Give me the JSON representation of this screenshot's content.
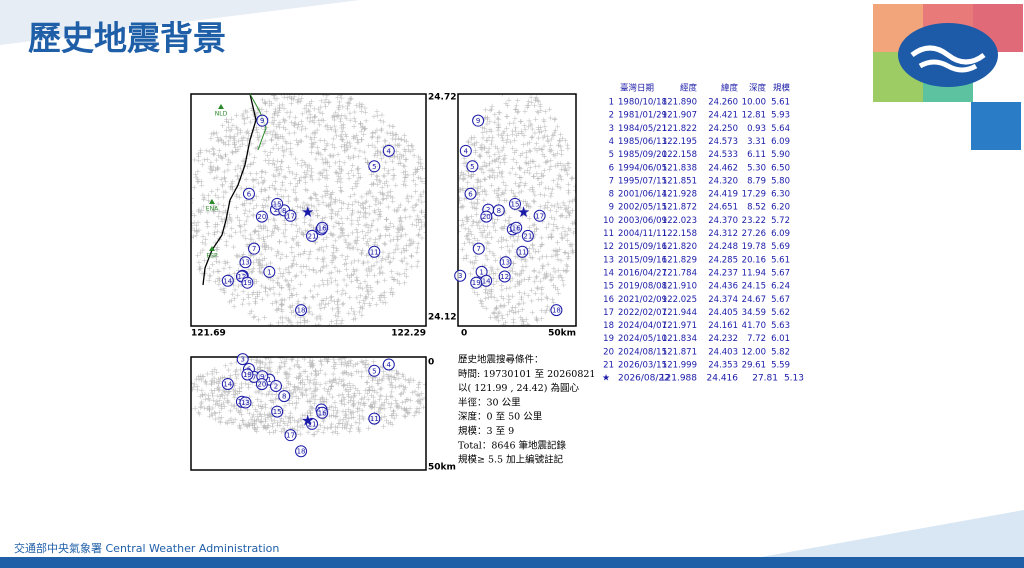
{
  "header": {
    "title": "歷史地震背景"
  },
  "map": {
    "lat_top": "24.72",
    "lat_bottom": "24.12",
    "lon_left": "121.69",
    "lon_right": "122.29",
    "depth_top": "0",
    "depth_bottom": "50km",
    "stations": [
      "NLD",
      "ENA",
      "ESP"
    ]
  },
  "conditions": [
    "歷史地震搜尋條件：",
    "時間: 19730101 至 20260821",
    "以( 121.99 , 24.42) 為圓心",
    "半徑：30 公里",
    "深度：0 至 50 公里",
    "規模：3 至 9",
    "Total：8646 筆地震記錄",
    "規模≥ 5.5 加上編號註記"
  ],
  "table": {
    "header": [
      "臺灣日期",
      "經度",
      "緯度",
      "深度",
      "規模"
    ],
    "rows": [
      [
        "1",
        "1980/10/18",
        "121.890",
        "24.260",
        "10.00",
        "5.61"
      ],
      [
        "2",
        "1981/01/29",
        "121.907",
        "24.421",
        "12.81",
        "5.93"
      ],
      [
        "3",
        "1984/05/21",
        "121.822",
        "24.250",
        "0.93",
        "5.64"
      ],
      [
        "4",
        "1985/06/13",
        "122.195",
        "24.573",
        "3.31",
        "6.09"
      ],
      [
        "5",
        "1985/09/20",
        "122.158",
        "24.533",
        "6.11",
        "5.90"
      ],
      [
        "6",
        "1994/06/05",
        "121.838",
        "24.462",
        "5.30",
        "6.50"
      ],
      [
        "7",
        "1995/07/15",
        "121.851",
        "24.320",
        "8.79",
        "5.80"
      ],
      [
        "8",
        "2001/06/14",
        "121.928",
        "24.419",
        "17.29",
        "6.30"
      ],
      [
        "9",
        "2002/05/15",
        "121.872",
        "24.651",
        "8.52",
        "6.20"
      ],
      [
        "10",
        "2003/06/09",
        "122.023",
        "24.370",
        "23.22",
        "5.72"
      ],
      [
        "11",
        "2004/11/11",
        "122.158",
        "24.312",
        "27.26",
        "6.09"
      ],
      [
        "12",
        "2015/09/16",
        "121.820",
        "24.248",
        "19.78",
        "5.69"
      ],
      [
        "13",
        "2015/09/16",
        "121.829",
        "24.285",
        "20.16",
        "5.61"
      ],
      [
        "14",
        "2016/04/27",
        "121.784",
        "24.237",
        "11.94",
        "5.67"
      ],
      [
        "15",
        "2019/08/08",
        "121.910",
        "24.436",
        "24.15",
        "6.24"
      ],
      [
        "16",
        "2021/02/09",
        "122.025",
        "24.374",
        "24.67",
        "5.67"
      ],
      [
        "17",
        "2022/02/07",
        "121.944",
        "24.405",
        "34.59",
        "5.62"
      ],
      [
        "18",
        "2024/04/07",
        "121.971",
        "24.161",
        "41.70",
        "5.63"
      ],
      [
        "19",
        "2024/05/10",
        "121.834",
        "24.232",
        "7.72",
        "6.01"
      ],
      [
        "20",
        "2024/08/15",
        "121.871",
        "24.403",
        "12.00",
        "5.82"
      ],
      [
        "21",
        "2026/03/15",
        "121.999",
        "24.353",
        "29.61",
        "5.59"
      ]
    ],
    "current": [
      "2026/08/22",
      "121.988",
      "24.416",
      "27.81",
      "5.13"
    ]
  },
  "footer": {
    "agency": "交通部中央氣象署 Central Weather Administration"
  }
}
